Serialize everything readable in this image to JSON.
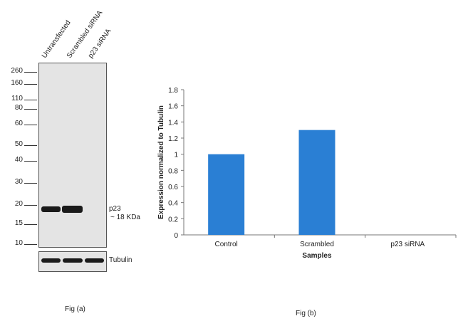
{
  "fig_a": {
    "caption": "Fig (a)",
    "lanes": [
      "Untransfected",
      "Scrambled siRNA",
      "p23 siRNA"
    ],
    "mw_markers": [
      "260",
      "160",
      "110",
      "80",
      "60",
      "50",
      "40",
      "30",
      "20",
      "15",
      "10"
    ],
    "band_label_line1": "p23",
    "band_label_line2": "~ 18 KDa",
    "loading_label": "Tubulin"
  },
  "fig_b": {
    "caption": "Fig (b)"
  },
  "chart_data": {
    "type": "bar",
    "categories": [
      "Control",
      "Scrambled",
      "p23 siRNA"
    ],
    "values": [
      1.0,
      1.3,
      0
    ],
    "xlabel": "Samples",
    "ylabel": "Expression normalized to Tubulin",
    "ylim": [
      0,
      1.8
    ],
    "yticks": [
      "0",
      "0.2",
      "0.4",
      "0.6",
      "0.8",
      "1",
      "1.2",
      "1.4",
      "1.6",
      "1.8"
    ],
    "bar_color": "#2a7fd4",
    "grid": false,
    "legend": "none"
  }
}
